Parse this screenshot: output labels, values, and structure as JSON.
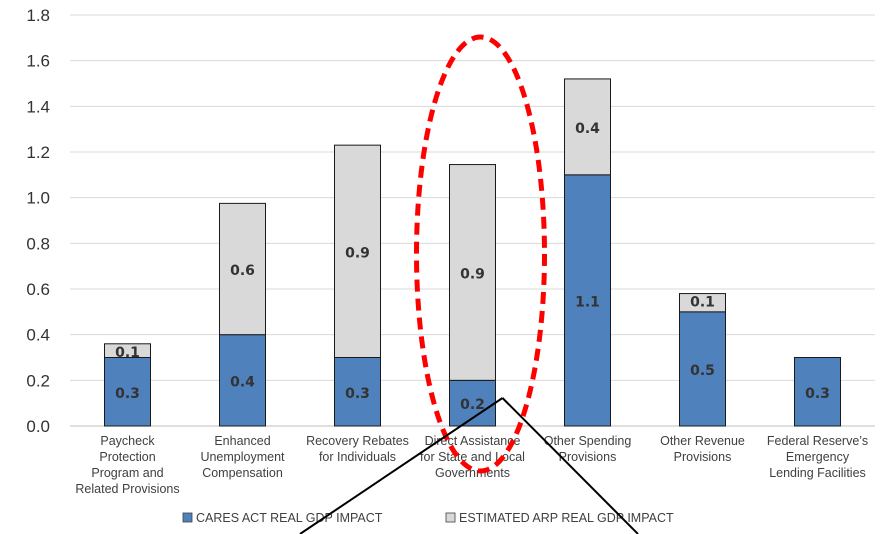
{
  "chart_data": {
    "type": "bar",
    "stacked": true,
    "categories": [
      [
        "Paycheck",
        "Protection",
        "Program and",
        "Related Provisions"
      ],
      [
        "Enhanced",
        "Unemployment",
        "Compensation"
      ],
      [
        "Recovery Rebates",
        "for Individuals"
      ],
      [
        "Direct Assistance",
        "for State and Local",
        "Governments"
      ],
      [
        "Other Spending",
        "Provisions"
      ],
      [
        "Other Revenue",
        "Provisions"
      ],
      [
        "Federal Reserve’s",
        "Emergency",
        "Lending Facilities"
      ]
    ],
    "series": [
      {
        "name": "CARES ACT REAL GDP IMPACT",
        "color": "#4f81bd",
        "values": [
          0.3,
          0.4,
          0.3,
          0.2,
          1.1,
          0.5,
          0.3
        ],
        "labels": [
          "0.3",
          "0.4",
          "0.3",
          "0.2",
          "1.1",
          "0.5",
          "0.3"
        ]
      },
      {
        "name": "ESTIMATED ARP REAL GDP IMPACT",
        "color": "#d9d9d9",
        "values": [
          0.06,
          0.575,
          0.93,
          0.945,
          0.42,
          0.08,
          0
        ],
        "labels": [
          "0.1",
          "0.6",
          "0.9",
          "0.9",
          "0.4",
          "0.1",
          ""
        ]
      }
    ],
    "ylim": [
      0,
      1.8
    ],
    "yticks": [
      "0.0",
      "0.2",
      "0.4",
      "0.6",
      "0.8",
      "1.0",
      "1.2",
      "1.4",
      "1.6",
      "1.8"
    ],
    "grid": true,
    "legend_position": "bottom",
    "annotations": [
      {
        "type": "dashed-ellipse",
        "color": "#ff0000",
        "target_category_index": 3
      },
      {
        "type": "callout-lines",
        "color": "#000000",
        "target_category_index": 3
      }
    ]
  }
}
